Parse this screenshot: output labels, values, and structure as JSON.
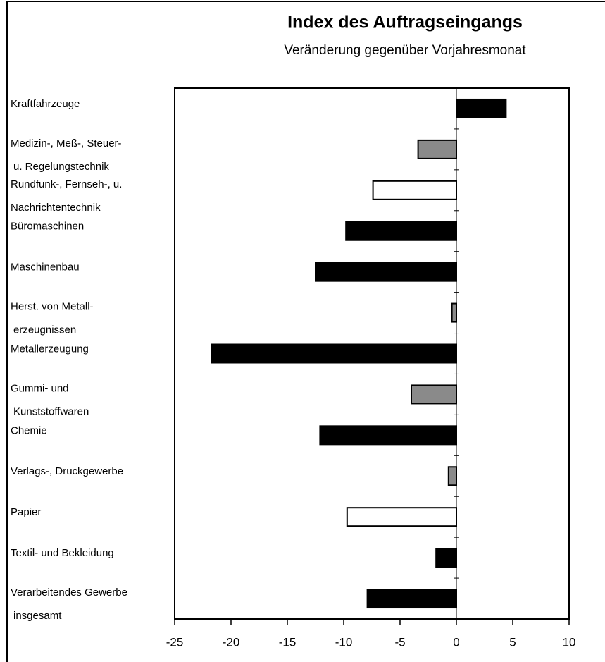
{
  "chart_data": {
    "type": "barh",
    "title": "Index des Auftragseingangs",
    "subtitle": "Veränderung gegenüber Vorjahresmonat",
    "categories": [
      [
        "Kraftfahrzeuge"
      ],
      [
        "Medizin-, Meß-, Steuer-",
        "u. Regelungstechnik"
      ],
      [
        "Rundfunk-, Fernseh-, u.",
        "Nachrichtentechnik"
      ],
      [
        "Büromaschinen"
      ],
      [
        "Maschinenbau"
      ],
      [
        "Herst. von Metall-",
        "erzeugnissen"
      ],
      [
        "Metallerzeugung"
      ],
      [
        "Gummi- und",
        "Kunststoffwaren"
      ],
      [
        "Chemie"
      ],
      [
        "Verlags-, Druckgewerbe"
      ],
      [
        "Papier"
      ],
      [
        "Textil- und Bekleidung"
      ],
      [
        "Verarbeitendes Gewerbe",
        "insgesamt"
      ]
    ],
    "values": [
      4.4,
      -3.4,
      -7.4,
      -9.8,
      -12.5,
      -0.4,
      -21.7,
      -4.0,
      -12.1,
      -0.7,
      -9.7,
      -1.8,
      -7.9
    ],
    "colors": [
      "#000000",
      "#8a8a8a",
      "#ffffff",
      "#000000",
      "#000000",
      "#8a8a8a",
      "#000000",
      "#8a8a8a",
      "#000000",
      "#8a8a8a",
      "#ffffff",
      "#000000",
      "#000000"
    ],
    "xlim": [
      -25,
      10
    ],
    "xticks": [
      -25,
      -20,
      -15,
      -10,
      -5,
      0,
      5,
      10
    ]
  }
}
